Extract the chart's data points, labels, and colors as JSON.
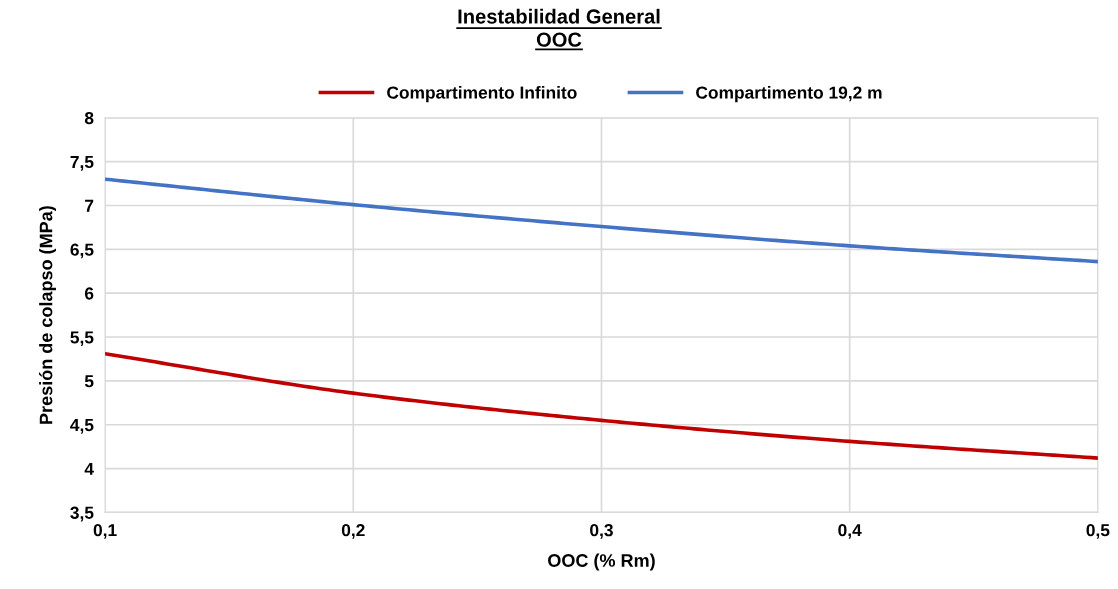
{
  "chart_data": {
    "type": "line",
    "title": "Inestabilidad General\nOOC",
    "xlabel": "OOC (% Rm)",
    "ylabel": "Presión de colapso (MPa)",
    "x": [
      0.1,
      0.2,
      0.3,
      0.4,
      0.5
    ],
    "series": [
      {
        "name": "Compartimento Infinito",
        "color": "#c00000",
        "values": [
          5.31,
          4.86,
          4.55,
          4.31,
          4.12
        ]
      },
      {
        "name": "Compartimento 19,2 m",
        "color": "#4472c4",
        "values": [
          7.3,
          7.01,
          6.76,
          6.54,
          6.36
        ]
      }
    ],
    "xlim": [
      0.1,
      0.5
    ],
    "xticks": [
      {
        "value": 0.1,
        "label": "0,1"
      },
      {
        "value": 0.2,
        "label": "0,2"
      },
      {
        "value": 0.3,
        "label": "0,3"
      },
      {
        "value": 0.4,
        "label": "0,4"
      },
      {
        "value": 0.5,
        "label": "0,5"
      }
    ],
    "ylim": [
      3.5,
      8
    ],
    "yticks": [
      {
        "value": 3.5,
        "label": "3,5"
      },
      4,
      {
        "value": 4.5,
        "label": "4,5"
      },
      5,
      {
        "value": 5.5,
        "label": "5,5"
      },
      6,
      {
        "value": 6.5,
        "label": "6,5"
      },
      7,
      {
        "value": 7.5,
        "label": "7,5"
      },
      8
    ],
    "grid": true,
    "legend": "top",
    "marker": "none",
    "line_style": "solid"
  }
}
